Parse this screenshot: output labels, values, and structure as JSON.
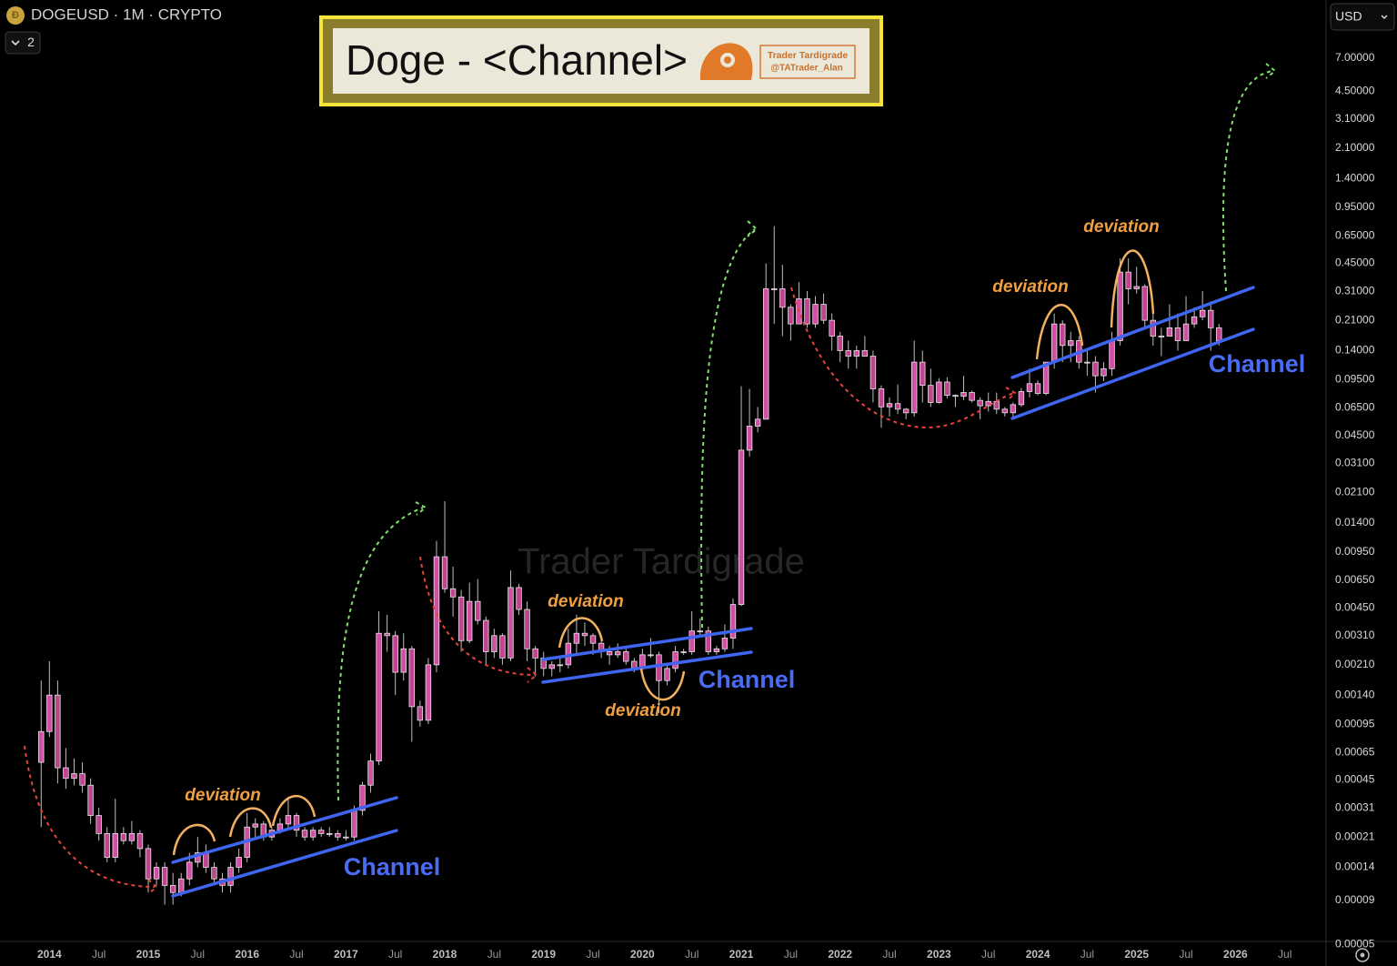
{
  "chart_data": {
    "type": "candlestick",
    "symbol": "DOGEUSD · 1M · CRYPTO",
    "indicator_count": 2,
    "currency": "USD",
    "title": "Doge - <Channel>",
    "author": "Trader Tardigrade",
    "handle": "@TATrader_Alan",
    "watermark": "Trader Tardigrade",
    "log_scale": true,
    "grid": false,
    "up_color": "#d24fa6",
    "down_color": "#c0448f",
    "border_color": "#e6e6e6",
    "wick_color": "#bdbdbd",
    "xlim": [
      "2013-07",
      "2026-12"
    ],
    "ylim": [
      5.2e-05,
      15.2
    ],
    "xticks": [
      {
        "value": "2014-01",
        "label": "2014"
      },
      {
        "value": "2014-07",
        "label": "Jul"
      },
      {
        "value": "2015-01",
        "label": "2015"
      },
      {
        "value": "2015-07",
        "label": "Jul"
      },
      {
        "value": "2016-01",
        "label": "2016"
      },
      {
        "value": "2016-07",
        "label": "Jul"
      },
      {
        "value": "2017-01",
        "label": "2017"
      },
      {
        "value": "2017-07",
        "label": "Jul"
      },
      {
        "value": "2018-01",
        "label": "2018"
      },
      {
        "value": "2018-07",
        "label": "Jul"
      },
      {
        "value": "2019-01",
        "label": "2019"
      },
      {
        "value": "2019-07",
        "label": "Jul"
      },
      {
        "value": "2020-01",
        "label": "2020"
      },
      {
        "value": "2020-07",
        "label": "Jul"
      },
      {
        "value": "2021-01",
        "label": "2021"
      },
      {
        "value": "2021-07",
        "label": "Jul"
      },
      {
        "value": "2022-01",
        "label": "2022"
      },
      {
        "value": "2022-07",
        "label": "Jul"
      },
      {
        "value": "2023-01",
        "label": "2023"
      },
      {
        "value": "2023-07",
        "label": "Jul"
      },
      {
        "value": "2024-01",
        "label": "2024"
      },
      {
        "value": "2024-07",
        "label": "Jul"
      },
      {
        "value": "2025-01",
        "label": "2025"
      },
      {
        "value": "2025-07",
        "label": "Jul"
      },
      {
        "value": "2026-01",
        "label": "2026"
      },
      {
        "value": "2026-07",
        "label": "Jul"
      }
    ],
    "yticks": [
      {
        "value": 7,
        "label": "7.00000"
      },
      {
        "value": 4.5,
        "label": "4.50000"
      },
      {
        "value": 3.1,
        "label": "3.10000"
      },
      {
        "value": 2.1,
        "label": "2.10000"
      },
      {
        "value": 1.4,
        "label": "1.40000"
      },
      {
        "value": 0.95,
        "label": "0.95000"
      },
      {
        "value": 0.65,
        "label": "0.65000"
      },
      {
        "value": 0.45,
        "label": "0.45000"
      },
      {
        "value": 0.31,
        "label": "0.31000"
      },
      {
        "value": 0.21,
        "label": "0.21000"
      },
      {
        "value": 0.14,
        "label": "0.14000"
      },
      {
        "value": 0.095,
        "label": "0.09500"
      },
      {
        "value": 0.065,
        "label": "0.06500"
      },
      {
        "value": 0.045,
        "label": "0.04500"
      },
      {
        "value": 0.031,
        "label": "0.03100"
      },
      {
        "value": 0.021,
        "label": "0.02100"
      },
      {
        "value": 0.014,
        "label": "0.01400"
      },
      {
        "value": 0.0095,
        "label": "0.00950"
      },
      {
        "value": 0.0065,
        "label": "0.00650"
      },
      {
        "value": 0.0045,
        "label": "0.00450"
      },
      {
        "value": 0.0031,
        "label": "0.00310"
      },
      {
        "value": 0.0021,
        "label": "0.00210"
      },
      {
        "value": 0.0014,
        "label": "0.00140"
      },
      {
        "value": 0.00095,
        "label": "0.00095"
      },
      {
        "value": 0.00065,
        "label": "0.00065"
      },
      {
        "value": 0.00045,
        "label": "0.00045"
      },
      {
        "value": 0.00031,
        "label": "0.00031"
      },
      {
        "value": 0.00021,
        "label": "0.00021"
      },
      {
        "value": 0.00014,
        "label": "0.00014"
      },
      {
        "value": 9e-05,
        "label": "0.00009"
      },
      {
        "value": 5e-05,
        "label": "0.00005"
      }
    ],
    "annotations": [
      {
        "text": "deviation",
        "color": "#f0a040"
      },
      {
        "text": "Channel",
        "color": "#4a6cf5"
      },
      {
        "text": "deviation",
        "color": "#f0a040"
      },
      {
        "text": "deviation",
        "color": "#f0a040"
      },
      {
        "text": "Channel",
        "color": "#4a6cf5"
      },
      {
        "text": "deviation",
        "color": "#f0a040"
      },
      {
        "text": "deviation",
        "color": "#f0a040"
      },
      {
        "text": "Channel",
        "color": "#4a6cf5"
      }
    ],
    "x": [
      "2013-12",
      "2014-01",
      "2014-02",
      "2014-03",
      "2014-04",
      "2014-05",
      "2014-06",
      "2014-07",
      "2014-08",
      "2014-09",
      "2014-10",
      "2014-11",
      "2014-12",
      "2015-01",
      "2015-02",
      "2015-03",
      "2015-04",
      "2015-05",
      "2015-06",
      "2015-07",
      "2015-08",
      "2015-09",
      "2015-10",
      "2015-11",
      "2015-12",
      "2016-01",
      "2016-02",
      "2016-03",
      "2016-04",
      "2016-05",
      "2016-06",
      "2016-07",
      "2016-08",
      "2016-09",
      "2016-10",
      "2016-11",
      "2016-12",
      "2017-01",
      "2017-02",
      "2017-03",
      "2017-04",
      "2017-05",
      "2017-06",
      "2017-07",
      "2017-08",
      "2017-09",
      "2017-10",
      "2017-11",
      "2017-12",
      "2018-01",
      "2018-02",
      "2018-03",
      "2018-04",
      "2018-05",
      "2018-06",
      "2018-07",
      "2018-08",
      "2018-09",
      "2018-10",
      "2018-11",
      "2018-12",
      "2019-01",
      "2019-02",
      "2019-03",
      "2019-04",
      "2019-05",
      "2019-06",
      "2019-07",
      "2019-08",
      "2019-09",
      "2019-10",
      "2019-11",
      "2019-12",
      "2020-01",
      "2020-02",
      "2020-03",
      "2020-04",
      "2020-05",
      "2020-06",
      "2020-07",
      "2020-08",
      "2020-09",
      "2020-10",
      "2020-11",
      "2020-12",
      "2021-01",
      "2021-02",
      "2021-03",
      "2021-04",
      "2021-05",
      "2021-06",
      "2021-07",
      "2021-08",
      "2021-09",
      "2021-10",
      "2021-11",
      "2021-12",
      "2022-01",
      "2022-02",
      "2022-03",
      "2022-04",
      "2022-05",
      "2022-06",
      "2022-07",
      "2022-08",
      "2022-09",
      "2022-10",
      "2022-11",
      "2022-12",
      "2023-01",
      "2023-02",
      "2023-03",
      "2023-04",
      "2023-05",
      "2023-06",
      "2023-07",
      "2023-08",
      "2023-09",
      "2023-10",
      "2023-11",
      "2023-12",
      "2024-01",
      "2024-02",
      "2024-03",
      "2024-04",
      "2024-05",
      "2024-06",
      "2024-07",
      "2024-08",
      "2024-09",
      "2024-10",
      "2024-11",
      "2024-12",
      "2025-01",
      "2025-02",
      "2025-03",
      "2025-04",
      "2025-05",
      "2025-06",
      "2025-07",
      "2025-08",
      "2025-09",
      "2025-10",
      "2025-11"
    ],
    "open": [
      0.00057,
      0.00086,
      0.0014,
      0.00053,
      0.00046,
      0.00049,
      0.00042,
      0.00028,
      0.00022,
      0.00016,
      0.00022,
      0.0002,
      0.00022,
      0.00018,
      0.00012,
      0.00014,
      0.00011,
      0.0001,
      0.00012,
      0.00015,
      0.00017,
      0.00014,
      0.00012,
      0.00011,
      0.00014,
      0.00016,
      0.00024,
      0.00025,
      0.00021,
      0.00023,
      0.00025,
      0.00028,
      0.00023,
      0.00021,
      0.00023,
      0.00022,
      0.00022,
      0.00021,
      0.00021,
      0.0003,
      0.00042,
      0.00058,
      0.0032,
      0.0031,
      0.0019,
      0.0026,
      0.0012,
      0.001,
      0.0021,
      0.0089,
      0.0058,
      0.0052,
      0.0029,
      0.0049,
      0.0038,
      0.0025,
      0.0031,
      0.0023,
      0.0059,
      0.0044,
      0.0026,
      0.0023,
      0.002,
      0.0021,
      0.0021,
      0.0028,
      0.0032,
      0.0031,
      0.0028,
      0.0025,
      0.0024,
      0.0025,
      0.0022,
      0.002,
      0.0024,
      0.0024,
      0.0017,
      0.002,
      0.0025,
      0.0025,
      0.0033,
      0.0033,
      0.0025,
      0.0026,
      0.003,
      0.0047,
      0.037,
      0.051,
      0.056,
      0.32,
      0.32,
      0.25,
      0.2,
      0.28,
      0.2,
      0.26,
      0.21,
      0.17,
      0.14,
      0.13,
      0.14,
      0.13,
      0.084,
      0.066,
      0.069,
      0.064,
      0.061,
      0.12,
      0.088,
      0.07,
      0.092,
      0.077,
      0.076,
      0.08,
      0.072,
      0.067,
      0.071,
      0.064,
      0.061,
      0.068,
      0.081,
      0.09,
      0.079,
      0.12,
      0.2,
      0.15,
      0.16,
      0.12,
      0.12,
      0.1,
      0.11,
      0.16,
      0.4,
      0.32,
      0.33,
      0.21,
      0.17,
      0.17,
      0.19,
      0.16,
      0.2,
      0.22,
      0.24,
      0.19
    ],
    "high": [
      0.0017,
      0.0022,
      0.0017,
      0.00069,
      0.0006,
      0.00057,
      0.00046,
      0.00031,
      0.00024,
      0.00035,
      0.00024,
      0.00026,
      0.00023,
      0.00019,
      0.00015,
      0.00015,
      0.00013,
      0.00013,
      0.00017,
      0.00021,
      0.00019,
      0.00015,
      0.00013,
      0.00015,
      0.00018,
      0.00029,
      0.00027,
      0.00026,
      0.00024,
      0.00027,
      0.00036,
      0.00029,
      0.00024,
      0.00024,
      0.00024,
      0.00024,
      0.00023,
      0.00023,
      0.00032,
      0.00044,
      0.00064,
      0.0043,
      0.0041,
      0.0033,
      0.0032,
      0.0027,
      0.0013,
      0.0023,
      0.011,
      0.0187,
      0.0078,
      0.0057,
      0.0063,
      0.0066,
      0.004,
      0.0034,
      0.0032,
      0.0074,
      0.0062,
      0.0049,
      0.0027,
      0.0025,
      0.0022,
      0.0023,
      0.0034,
      0.0041,
      0.0037,
      0.0032,
      0.003,
      0.0027,
      0.0028,
      0.0026,
      0.0023,
      0.0026,
      0.003,
      0.0025,
      0.0021,
      0.0027,
      0.0026,
      0.0043,
      0.0039,
      0.0035,
      0.0027,
      0.0036,
      0.0051,
      0.087,
      0.084,
      0.066,
      0.45,
      0.74,
      0.44,
      0.26,
      0.35,
      0.31,
      0.29,
      0.3,
      0.23,
      0.18,
      0.16,
      0.15,
      0.17,
      0.14,
      0.088,
      0.075,
      0.089,
      0.065,
      0.16,
      0.14,
      0.11,
      0.097,
      0.098,
      0.078,
      0.1,
      0.082,
      0.075,
      0.08,
      0.08,
      0.066,
      0.07,
      0.085,
      0.11,
      0.094,
      0.12,
      0.23,
      0.21,
      0.18,
      0.17,
      0.14,
      0.13,
      0.12,
      0.18,
      0.48,
      0.48,
      0.43,
      0.34,
      0.23,
      0.19,
      0.26,
      0.23,
      0.29,
      0.25,
      0.31,
      0.27,
      0.2
    ],
    "low": [
      0.00024,
      0.0008,
      0.00043,
      0.0004,
      0.00042,
      0.00038,
      0.00025,
      0.0002,
      0.00015,
      0.00015,
      0.00019,
      0.00019,
      0.00016,
      0.0001,
      0.00011,
      8.5e-05,
      8.5e-05,
      9.5e-05,
      0.00011,
      0.00014,
      0.00013,
      0.00011,
      0.0001,
      0.0001,
      0.00013,
      0.00015,
      0.00021,
      0.0002,
      0.0002,
      0.00022,
      0.00023,
      0.00021,
      0.0002,
      0.0002,
      0.00021,
      0.00021,
      0.0002,
      0.0002,
      0.0002,
      0.00028,
      0.00038,
      0.00055,
      0.0025,
      0.0014,
      0.0017,
      0.00075,
      0.00092,
      0.00095,
      0.0019,
      0.0055,
      0.004,
      0.0025,
      0.0028,
      0.0036,
      0.0021,
      0.0023,
      0.0021,
      0.0022,
      0.0041,
      0.0022,
      0.0018,
      0.0018,
      0.0018,
      0.0019,
      0.002,
      0.0024,
      0.0027,
      0.0024,
      0.0023,
      0.0021,
      0.0023,
      0.0021,
      0.0019,
      0.002,
      0.0023,
      0.0011,
      0.0016,
      0.0019,
      0.0024,
      0.0024,
      0.0031,
      0.0024,
      0.0024,
      0.0025,
      0.0026,
      0.0046,
      0.034,
      0.047,
      0.056,
      0.2,
      0.17,
      0.16,
      0.2,
      0.19,
      0.19,
      0.2,
      0.14,
      0.12,
      0.11,
      0.11,
      0.13,
      0.07,
      0.05,
      0.058,
      0.06,
      0.056,
      0.058,
      0.07,
      0.066,
      0.069,
      0.074,
      0.066,
      0.072,
      0.07,
      0.056,
      0.062,
      0.06,
      0.058,
      0.058,
      0.066,
      0.075,
      0.077,
      0.077,
      0.11,
      0.12,
      0.12,
      0.11,
      0.1,
      0.08,
      0.093,
      0.1,
      0.15,
      0.26,
      0.3,
      0.19,
      0.15,
      0.13,
      0.17,
      0.14,
      0.16,
      0.19,
      0.21,
      0.14,
      0.15
    ],
    "close": [
      0.00086,
      0.0014,
      0.00053,
      0.00046,
      0.00049,
      0.00042,
      0.00028,
      0.00022,
      0.00016,
      0.00022,
      0.0002,
      0.00022,
      0.00018,
      0.00012,
      0.00014,
      0.00011,
      0.0001,
      0.00012,
      0.00015,
      0.00017,
      0.00014,
      0.00012,
      0.00011,
      0.00014,
      0.00016,
      0.00024,
      0.00025,
      0.00021,
      0.00023,
      0.00025,
      0.00028,
      0.00023,
      0.00021,
      0.00023,
      0.00022,
      0.00022,
      0.00021,
      0.00021,
      0.0003,
      0.00042,
      0.00058,
      0.0032,
      0.0031,
      0.0019,
      0.0026,
      0.0012,
      0.001,
      0.0021,
      0.0089,
      0.0058,
      0.0052,
      0.0029,
      0.0049,
      0.0038,
      0.0025,
      0.0031,
      0.0023,
      0.0059,
      0.0044,
      0.0026,
      0.0023,
      0.002,
      0.0021,
      0.0021,
      0.0028,
      0.0032,
      0.0031,
      0.0028,
      0.0025,
      0.0024,
      0.0025,
      0.0022,
      0.002,
      0.0024,
      0.0024,
      0.0017,
      0.002,
      0.0025,
      0.0025,
      0.0033,
      0.0033,
      0.0025,
      0.0026,
      0.003,
      0.0047,
      0.037,
      0.051,
      0.056,
      0.32,
      0.32,
      0.25,
      0.2,
      0.28,
      0.2,
      0.26,
      0.21,
      0.17,
      0.14,
      0.13,
      0.14,
      0.13,
      0.084,
      0.066,
      0.069,
      0.064,
      0.061,
      0.12,
      0.088,
      0.07,
      0.092,
      0.077,
      0.076,
      0.08,
      0.072,
      0.067,
      0.071,
      0.064,
      0.061,
      0.068,
      0.081,
      0.09,
      0.079,
      0.12,
      0.2,
      0.15,
      0.16,
      0.12,
      0.12,
      0.1,
      0.11,
      0.16,
      0.4,
      0.32,
      0.33,
      0.21,
      0.17,
      0.17,
      0.19,
      0.16,
      0.2,
      0.22,
      0.24,
      0.19,
      0.16
    ]
  }
}
